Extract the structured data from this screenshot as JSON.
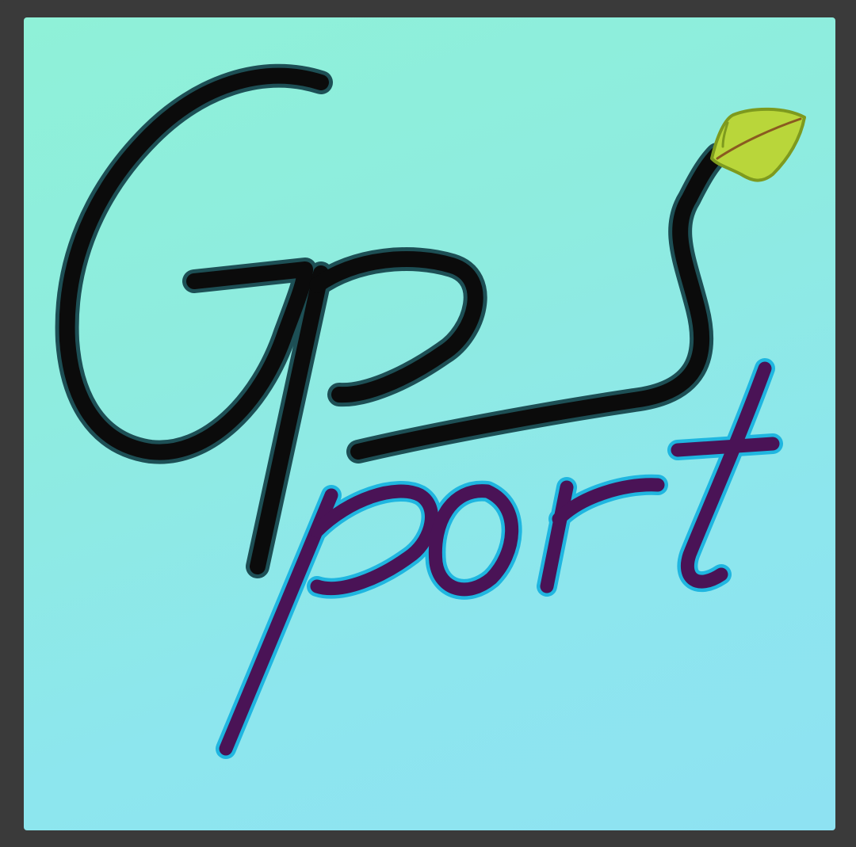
{
  "logo": {
    "wordmark_top": "Gps",
    "wordmark_bottom": "port",
    "colors": {
      "frame": "#3a3a3a",
      "background_top": "#8ff1d8",
      "background_bottom": "#8ee2f2",
      "gps_stroke": "#0b0b0b",
      "gps_outline": "#1d4f55",
      "port_stroke": "#4a1356",
      "port_outline": "#1fb6e0",
      "leaf_fill": "#b9d63a",
      "leaf_edge": "#7e9a1e",
      "leaf_vein": "#8a5a20"
    },
    "icons": [
      "leaf-icon"
    ]
  }
}
